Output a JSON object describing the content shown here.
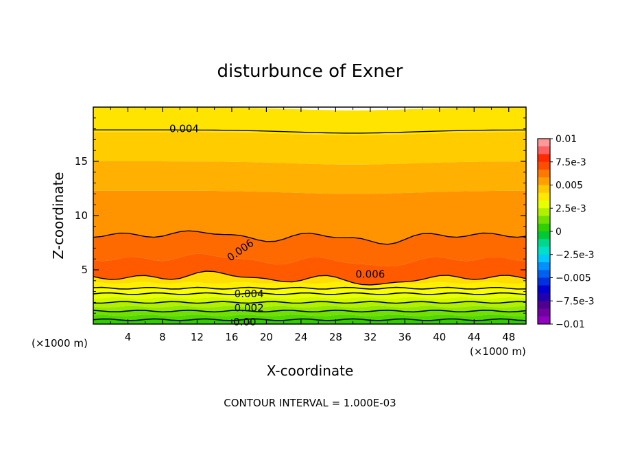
{
  "chart_data": {
    "type": "contour",
    "title": "disturbunce of Exner",
    "xlabel": "X-coordinate",
    "ylabel": "Z-coordinate",
    "x_unit_label": "(×1000 m)",
    "y_unit_label": "(×1000 m)",
    "footer": "CONTOUR INTERVAL = 1.000E-03",
    "xlim": [
      0,
      50
    ],
    "ylim": [
      0,
      20
    ],
    "x_ticks": [
      4,
      8,
      12,
      16,
      20,
      24,
      28,
      32,
      36,
      40,
      44,
      48
    ],
    "x_tick_labels": [
      "4",
      "8",
      "12",
      "16",
      "20",
      "24",
      "28",
      "32",
      "36",
      "40",
      "44",
      "48"
    ],
    "y_ticks": [
      5,
      10,
      15
    ],
    "y_tick_labels": [
      "5",
      "10",
      "15"
    ],
    "contour_interval": 0.001,
    "contour_labels": [
      {
        "text": "0.004",
        "x": 10.5,
        "z": 18.0
      },
      {
        "text": "0.006",
        "x": 17.0,
        "z": 6.8,
        "angle": -35
      },
      {
        "text": "0.006",
        "x": 32.0,
        "z": 4.6
      },
      {
        "text": "0.004",
        "x": 18.0,
        "z": 2.8
      },
      {
        "text": "0.002",
        "x": 18.0,
        "z": 1.5
      },
      {
        "text": "0.00",
        "x": 17.5,
        "z": 0.2
      }
    ],
    "colorbar": {
      "ticks": [
        0.01,
        0.0075,
        0.005,
        0.0025,
        0,
        -0.0025,
        -0.005,
        -0.0075,
        -0.01
      ],
      "tick_labels": [
        "0.01",
        "7.5e-3",
        "0.005",
        "2.5e-3",
        "0",
        "−2.5e-3",
        "−0.005",
        "−7.5e-3",
        "−0.01"
      ],
      "colors": [
        "#ff9999",
        "#ff6060",
        "#ff2a00",
        "#ff4e00",
        "#ff7800",
        "#ffa000",
        "#ffc800",
        "#ffe800",
        "#e8ff00",
        "#b0f000",
        "#70e000",
        "#30d000",
        "#00c838",
        "#00d890",
        "#00e0c8",
        "#00c8ff",
        "#0090ff",
        "#0060f0",
        "#0030e0",
        "#0000d0",
        "#2000b0",
        "#500090",
        "#7000a0",
        "#9000c0"
      ]
    },
    "bands": [
      {
        "level": 0.0,
        "color": "#40d800"
      },
      {
        "level": 0.0005,
        "color": "#60e000"
      },
      {
        "level": 0.001,
        "color": "#80e800"
      },
      {
        "level": 0.0015,
        "color": "#a8f000"
      },
      {
        "level": 0.002,
        "color": "#c8f800"
      },
      {
        "level": 0.0025,
        "color": "#e8ff00"
      },
      {
        "level": 0.003,
        "color": "#ffff00"
      },
      {
        "level": 0.0035,
        "color": "#ffee00"
      },
      {
        "level": 0.004,
        "color": "#ffdd00"
      },
      {
        "level": 0.0045,
        "color": "#ffc800"
      },
      {
        "level": 0.005,
        "color": "#ffaa00"
      },
      {
        "level": 0.0055,
        "color": "#ff8c00"
      },
      {
        "level": 0.006,
        "color": "#ff6a00"
      },
      {
        "level": 0.0065,
        "color": "#ff5000"
      }
    ],
    "band_boundaries_z": [
      0.4,
      0.8,
      1.2,
      1.6,
      2.0,
      2.4,
      2.8,
      3.3,
      3.8,
      4.3,
      6.0,
      8.2,
      12.3,
      15.0,
      17.7,
      20.0
    ],
    "band_fill_colors": [
      "#30cc00",
      "#50d800",
      "#70e000",
      "#90e800",
      "#b0f000",
      "#d0f800",
      "#e8ff00",
      "#f8ff00",
      "#fff000",
      "#ffdd00",
      "#ff5a00",
      "#ff6a00",
      "#ff9400",
      "#ffb000",
      "#ffcc00",
      "#ffe400"
    ]
  }
}
